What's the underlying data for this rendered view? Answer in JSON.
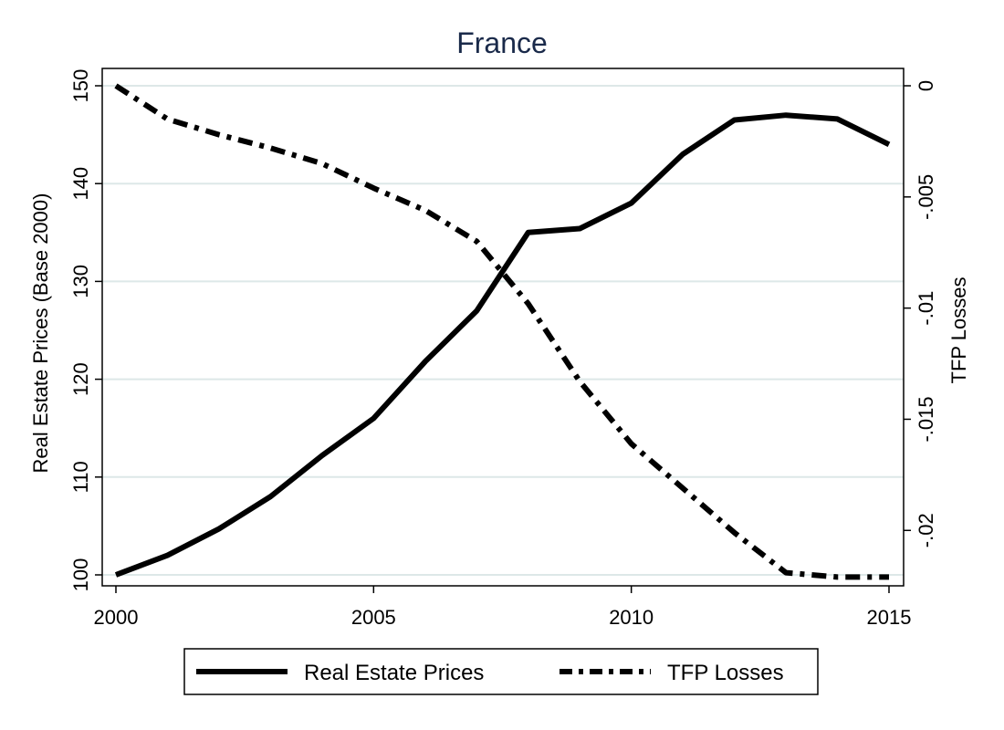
{
  "chart_data": {
    "type": "line",
    "title": "France",
    "x": [
      2000,
      2001,
      2002,
      2003,
      2004,
      2005,
      2006,
      2007,
      2008,
      2009,
      2010,
      2011,
      2012,
      2013,
      2014,
      2015
    ],
    "xlim": [
      2000,
      2015
    ],
    "xticks": [
      2000,
      2005,
      2010,
      2015
    ],
    "y_left": {
      "label": "Real Estate Prices (Base 2000)",
      "lim": [
        100,
        150
      ],
      "ticks": [
        100,
        110,
        120,
        130,
        140,
        150
      ],
      "tick_labels": [
        "100",
        "110",
        "120",
        "130",
        "140",
        "150"
      ]
    },
    "y_right": {
      "label": "TFP Losses",
      "lim": [
        -0.022,
        0
      ],
      "ticks": [
        0,
        -0.005,
        -0.01,
        -0.015,
        -0.02
      ],
      "tick_labels": [
        "0",
        "-.005",
        "-.01",
        "-.015",
        "-.02"
      ]
    },
    "grid": true,
    "legend_position": "bottom",
    "series": [
      {
        "name": "Real Estate Prices",
        "axis": "left",
        "style": "solid",
        "values": [
          100,
          102,
          104.7,
          108,
          112.2,
          116,
          121.8,
          127,
          135,
          135.4,
          138,
          143,
          146.5,
          147,
          146.6,
          144
        ]
      },
      {
        "name": "TFP Losses",
        "axis": "right",
        "style": "dash-dot",
        "values": [
          0,
          -0.0015,
          -0.0022,
          -0.0028,
          -0.0035,
          -0.0046,
          -0.0056,
          -0.007,
          -0.0098,
          -0.0133,
          -0.0161,
          -0.0181,
          -0.0201,
          -0.0219,
          -0.0221,
          -0.0221
        ]
      }
    ]
  },
  "colors": {
    "line": "#000000",
    "grid": "#dde8e8",
    "title": "#1a2a4a"
  }
}
